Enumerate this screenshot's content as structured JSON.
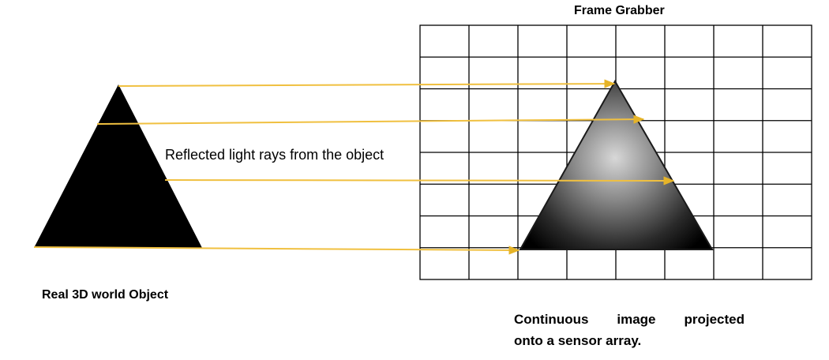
{
  "frame_grabber": {
    "title": "Frame Grabber",
    "columns": 8,
    "rows": 8
  },
  "object": {
    "label": "Real 3D world Object",
    "color": "#000000"
  },
  "rays": {
    "label": "Reflected light rays from the object",
    "color": "#f0c040",
    "count": 4
  },
  "projected_image": {
    "caption_line1": "Continuous image projected",
    "caption_line2": "onto a sensor array.",
    "center_color": "#d8d8d8",
    "edge_color": "#000000"
  }
}
